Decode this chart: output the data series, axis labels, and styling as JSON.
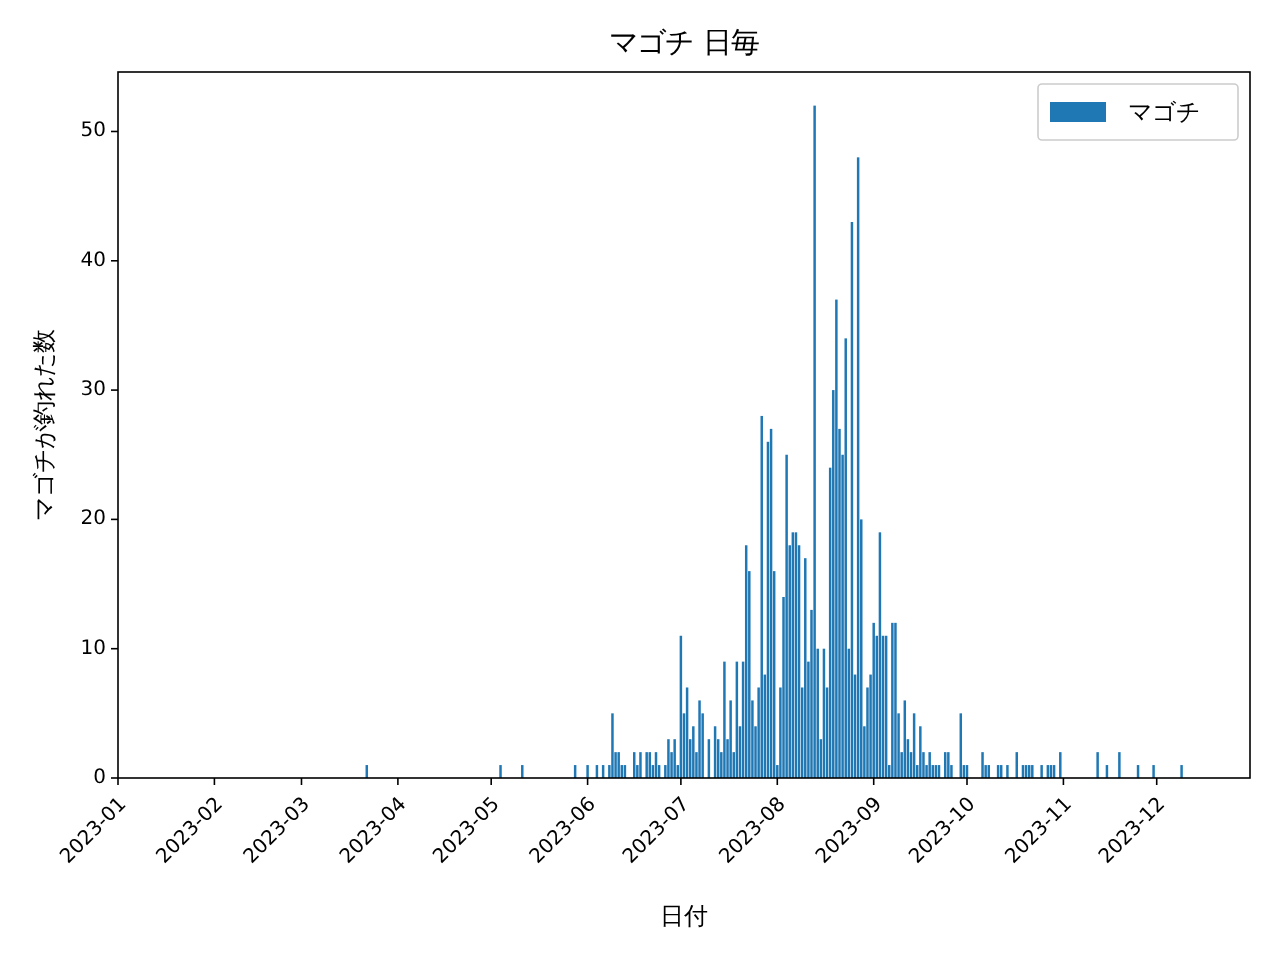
{
  "chart_data": {
    "type": "bar",
    "title": "マゴチ 日毎",
    "xlabel": "日付",
    "ylabel": "マゴチが釣れた数",
    "legend": "top right",
    "xlim": [
      "2023-01-01",
      "2023-12-31"
    ],
    "ylim": [
      0,
      54.6
    ],
    "xticks": [
      {
        "value": "2023-01-01",
        "label": "2023-01"
      },
      {
        "value": "2023-02-01",
        "label": "2023-02"
      },
      {
        "value": "2023-03-01",
        "label": "2023-03"
      },
      {
        "value": "2023-04-01",
        "label": "2023-04"
      },
      {
        "value": "2023-05-01",
        "label": "2023-05"
      },
      {
        "value": "2023-06-01",
        "label": "2023-06"
      },
      {
        "value": "2023-07-01",
        "label": "2023-07"
      },
      {
        "value": "2023-08-01",
        "label": "2023-08"
      },
      {
        "value": "2023-09-01",
        "label": "2023-09"
      },
      {
        "value": "2023-10-01",
        "label": "2023-10"
      },
      {
        "value": "2023-11-01",
        "label": "2023-11"
      },
      {
        "value": "2023-12-01",
        "label": "2023-12"
      }
    ],
    "yticks": [
      0,
      10,
      20,
      30,
      40,
      50
    ],
    "x": [
      "2023-03-22",
      "2023-05-04",
      "2023-05-11",
      "2023-05-28",
      "2023-06-01",
      "2023-06-04",
      "2023-06-06",
      "2023-06-08",
      "2023-06-09",
      "2023-06-10",
      "2023-06-11",
      "2023-06-12",
      "2023-06-13",
      "2023-06-16",
      "2023-06-17",
      "2023-06-18",
      "2023-06-20",
      "2023-06-21",
      "2023-06-22",
      "2023-06-23",
      "2023-06-24",
      "2023-06-26",
      "2023-06-27",
      "2023-06-28",
      "2023-06-29",
      "2023-06-30",
      "2023-07-01",
      "2023-07-02",
      "2023-07-03",
      "2023-07-04",
      "2023-07-05",
      "2023-07-06",
      "2023-07-07",
      "2023-07-08",
      "2023-07-10",
      "2023-07-12",
      "2023-07-13",
      "2023-07-14",
      "2023-07-15",
      "2023-07-16",
      "2023-07-17",
      "2023-07-18",
      "2023-07-19",
      "2023-07-20",
      "2023-07-21",
      "2023-07-22",
      "2023-07-23",
      "2023-07-24",
      "2023-07-25",
      "2023-07-26",
      "2023-07-27",
      "2023-07-28",
      "2023-07-29",
      "2023-07-30",
      "2023-07-31",
      "2023-08-01",
      "2023-08-02",
      "2023-08-03",
      "2023-08-04",
      "2023-08-05",
      "2023-08-06",
      "2023-08-07",
      "2023-08-08",
      "2023-08-09",
      "2023-08-10",
      "2023-08-11",
      "2023-08-12",
      "2023-08-13",
      "2023-08-14",
      "2023-08-15",
      "2023-08-16",
      "2023-08-17",
      "2023-08-18",
      "2023-08-19",
      "2023-08-20",
      "2023-08-21",
      "2023-08-22",
      "2023-08-23",
      "2023-08-24",
      "2023-08-25",
      "2023-08-26",
      "2023-08-27",
      "2023-08-28",
      "2023-08-29",
      "2023-08-30",
      "2023-08-31",
      "2023-09-01",
      "2023-09-02",
      "2023-09-03",
      "2023-09-04",
      "2023-09-05",
      "2023-09-06",
      "2023-09-07",
      "2023-09-08",
      "2023-09-09",
      "2023-09-10",
      "2023-09-11",
      "2023-09-12",
      "2023-09-13",
      "2023-09-14",
      "2023-09-15",
      "2023-09-16",
      "2023-09-17",
      "2023-09-18",
      "2023-09-19",
      "2023-09-20",
      "2023-09-21",
      "2023-09-22",
      "2023-09-24",
      "2023-09-25",
      "2023-09-26",
      "2023-09-29",
      "2023-09-30",
      "2023-10-01",
      "2023-10-06",
      "2023-10-07",
      "2023-10-08",
      "2023-10-11",
      "2023-10-12",
      "2023-10-14",
      "2023-10-17",
      "2023-10-19",
      "2023-10-20",
      "2023-10-21",
      "2023-10-22",
      "2023-10-25",
      "2023-10-27",
      "2023-10-28",
      "2023-10-29",
      "2023-10-31",
      "2023-11-12",
      "2023-11-15",
      "2023-11-19",
      "2023-11-25",
      "2023-11-30",
      "2023-12-09"
    ],
    "series": [
      {
        "name": "マゴチ",
        "color": "#1f77b4",
        "values": [
          1,
          1,
          1,
          1,
          1,
          1,
          1,
          1,
          5,
          2,
          2,
          1,
          1,
          2,
          1,
          2,
          2,
          2,
          1,
          2,
          1,
          1,
          3,
          2,
          3,
          1,
          11,
          5,
          7,
          3,
          4,
          2,
          6,
          5,
          3,
          4,
          3,
          2,
          9,
          3,
          6,
          2,
          9,
          4,
          9,
          18,
          16,
          6,
          4,
          7,
          28,
          8,
          26,
          27,
          16,
          1,
          7,
          14,
          25,
          18,
          19,
          19,
          18,
          7,
          17,
          9,
          13,
          52,
          10,
          3,
          10,
          7,
          24,
          30,
          37,
          27,
          25,
          34,
          10,
          43,
          8,
          48,
          20,
          4,
          7,
          8,
          12,
          11,
          19,
          11,
          11,
          1,
          12,
          12,
          5,
          2,
          6,
          3,
          2,
          5,
          1,
          4,
          2,
          1,
          2,
          1,
          1,
          1,
          2,
          2,
          1,
          5,
          1,
          1,
          2,
          1,
          1,
          1,
          1,
          1,
          2,
          1,
          1,
          1,
          1,
          1,
          1,
          1,
          1,
          2,
          2,
          1,
          2,
          1,
          1,
          1
        ]
      }
    ]
  }
}
